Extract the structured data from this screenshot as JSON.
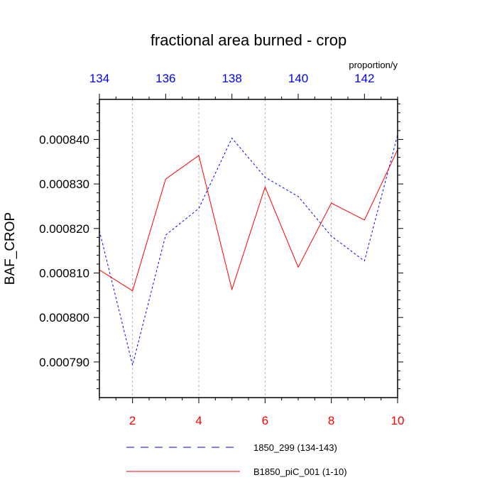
{
  "chart_data": {
    "type": "line",
    "title": "fractional area burned - crop",
    "ylabel": "BAF_CROP",
    "units": "proportion/y",
    "ylim": [
      0.000782,
      0.000849
    ],
    "y_ticks": [
      "0.000790",
      "0.000800",
      "0.000810",
      "0.000820",
      "0.000830",
      "0.000840"
    ],
    "bottom_axis": {
      "range": [
        1,
        10
      ],
      "ticks": [
        "2",
        "4",
        "6",
        "8",
        "10"
      ],
      "color": "#ff0000"
    },
    "top_axis": {
      "range": [
        134,
        143
      ],
      "ticks": [
        "134",
        "136",
        "138",
        "140",
        "142"
      ],
      "color": "#0000ff"
    },
    "grid": "vertical dashed at major bottom ticks",
    "series": [
      {
        "name": "1850_299 (134-143)",
        "color": "#0000ff",
        "style": "dashed",
        "axis": "top",
        "x": [
          134,
          135,
          136,
          137,
          138,
          139,
          140,
          141,
          142,
          143
        ],
        "values": [
          0.0008195,
          0.0007893,
          0.0008185,
          0.0008245,
          0.0008403,
          0.0008315,
          0.0008272,
          0.0008183,
          0.0008127,
          0.000841
        ]
      },
      {
        "name": "B1850_piC_001 (1-10)",
        "color": "#ff0000",
        "style": "solid",
        "axis": "bottom",
        "x": [
          1,
          2,
          3,
          4,
          5,
          6,
          7,
          8,
          9,
          10
        ],
        "values": [
          0.0008107,
          0.000806,
          0.0008311,
          0.0008364,
          0.0008063,
          0.0008293,
          0.0008113,
          0.0008257,
          0.0008219,
          0.0008377
        ]
      }
    ]
  }
}
